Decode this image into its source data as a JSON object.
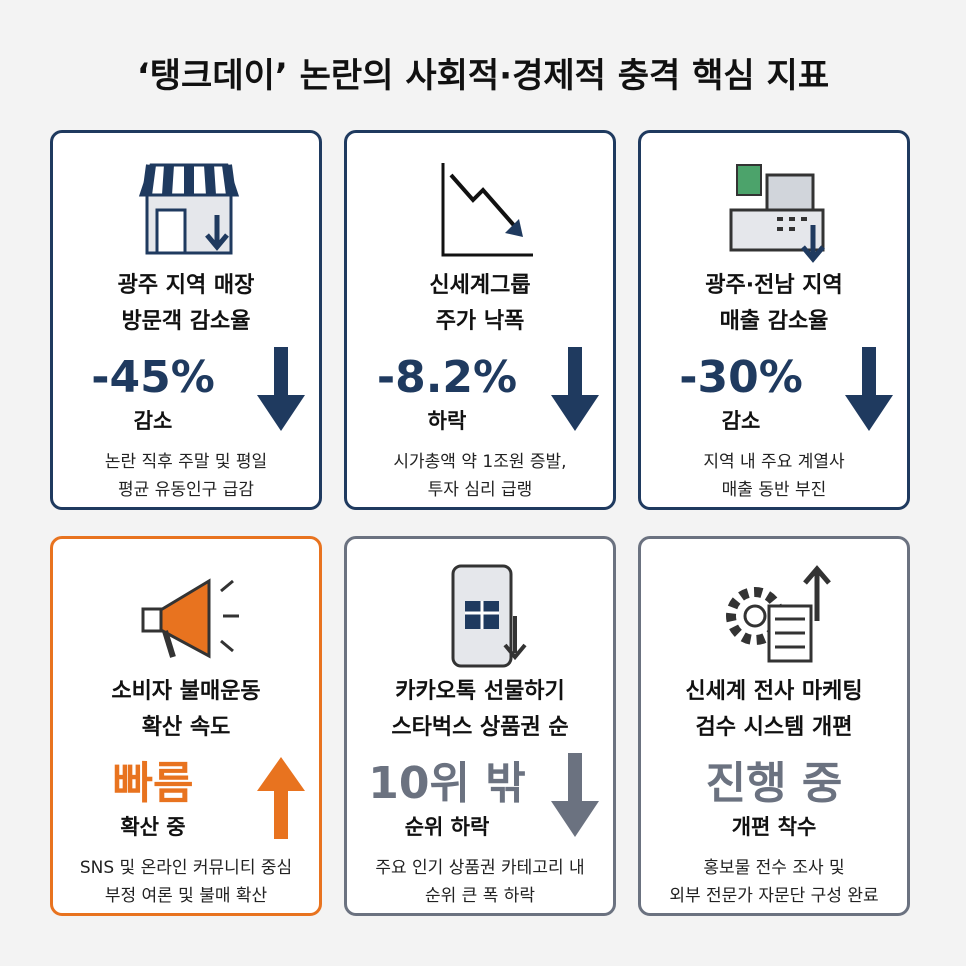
{
  "title": "‘탱크데이’ 논란의 사회적·경제적 충격 핵심 지표",
  "cards": [
    {
      "label": [
        "광주 지역 매장",
        "방문객 감소율"
      ],
      "value": "-45%",
      "sublabel": "감소",
      "description": [
        "논란 직후 주말 및 평일",
        "평균 유동인구 급감"
      ],
      "color": "#1f3a5f"
    },
    {
      "label": [
        "신세계그룹",
        "주가 낙폭"
      ],
      "value": "-8.2%",
      "sublabel": "하락",
      "description": [
        "시가총액 약 1조원 증발,",
        "투자 심리 급랭"
      ],
      "color": "#1f3a5f"
    },
    {
      "label": [
        "광주·전남 지역",
        "매출 감소율"
      ],
      "value": "-30%",
      "sublabel": "감소",
      "description": [
        "지역 내 주요 계열사",
        "매출 동반 부진"
      ],
      "color": "#1f3a5f"
    },
    {
      "label": [
        "소비자 불매운동",
        "확산 속도"
      ],
      "value": "빠름",
      "sublabel": "확산 중",
      "description": [
        "SNS 및 온라인 커뮤니티 중심",
        "부정 여론 및 불매 확산"
      ],
      "color": "#e8731f"
    },
    {
      "label": [
        "카카오톡 선물하기",
        "스타벅스 상품권 순"
      ],
      "value": "10위 밖",
      "sublabel": "순위 하락",
      "description": [
        "주요 인기 상품권 카테고리 내",
        "순위 큰 폭 하락"
      ],
      "color": "#6b7280"
    },
    {
      "label": [
        "신세계 전사 마케팅",
        "검수 시스템 개편"
      ],
      "value": "진행 중",
      "sublabel": "개편 착수",
      "description": [
        "홍보물 전수 조사 및",
        "외부 전문가 자문단 구성 완료"
      ],
      "color": "#6b7280"
    }
  ]
}
